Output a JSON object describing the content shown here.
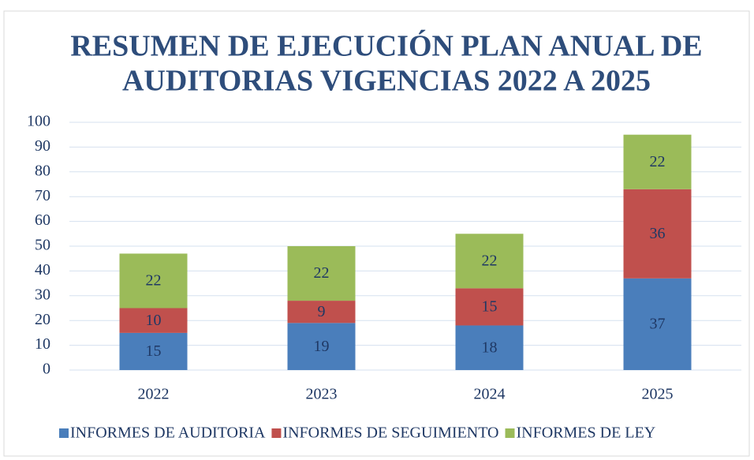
{
  "chart_data": {
    "type": "stacked_bar",
    "title": [
      "RESUMEN DE EJECUCIÓN PLAN ANUAL DE",
      "AUDITORIAS VIGENCIAS 2022 A 2025"
    ],
    "categories": [
      "2022",
      "2023",
      "2024",
      "2025"
    ],
    "series": [
      {
        "name": "INFORMES DE AUDITORIA",
        "color": "#4a7ebb",
        "values": [
          15,
          19,
          18,
          37
        ]
      },
      {
        "name": "INFORMES DE SEGUIMIENTO",
        "color": "#c0504d",
        "values": [
          10,
          9,
          15,
          36
        ]
      },
      {
        "name": "INFORMES DE LEY",
        "color": "#9bbb59",
        "values": [
          22,
          22,
          22,
          22
        ]
      }
    ],
    "ylim": [
      0,
      100
    ],
    "yticks": [
      0,
      10,
      20,
      30,
      40,
      50,
      60,
      70,
      80,
      90,
      100
    ],
    "grid": true,
    "legend": "bottom"
  }
}
